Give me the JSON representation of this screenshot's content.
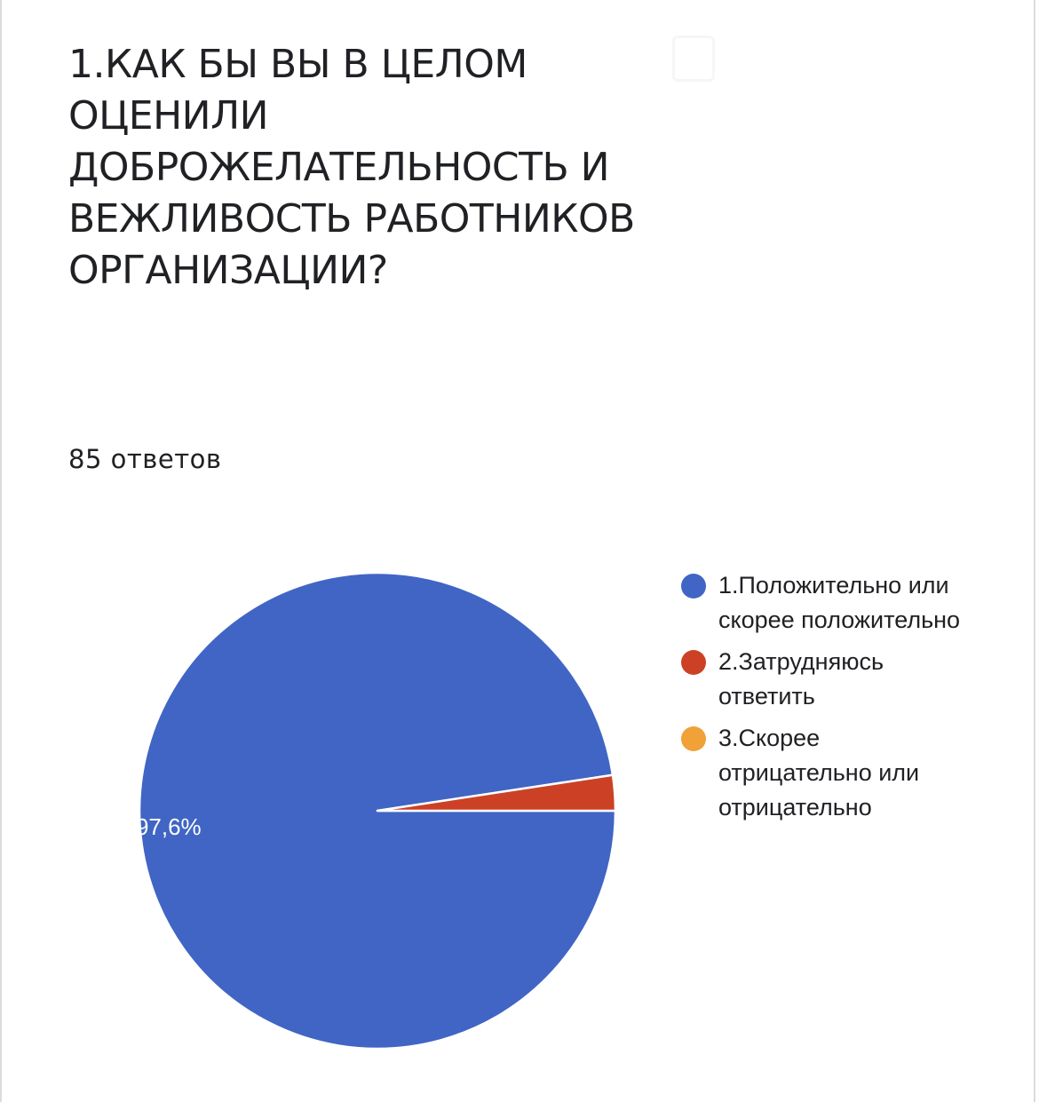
{
  "chart_data": {
    "type": "pie",
    "title": "1.КАК БЫ ВЫ В ЦЕЛОМ ОЦЕНИЛИ ДОБРОЖЕЛАТЕЛЬНОСТЬ И ВЕЖЛИВОСТЬ РАБОТНИКОВ ОРГАНИЗАЦИИ?",
    "subtitle": "85 ответов",
    "legend_position": "right",
    "categories": [
      "1.Положительно или скорее положительно",
      "2.Затрудняюсь ответить",
      "3.Скорее отрицательно или отрицательно"
    ],
    "values": [
      97.6,
      2.4,
      0
    ],
    "colors": [
      "#4065c4",
      "#cc4125",
      "#f0a137"
    ],
    "data_labels": [
      "97,6%",
      "",
      ""
    ]
  }
}
